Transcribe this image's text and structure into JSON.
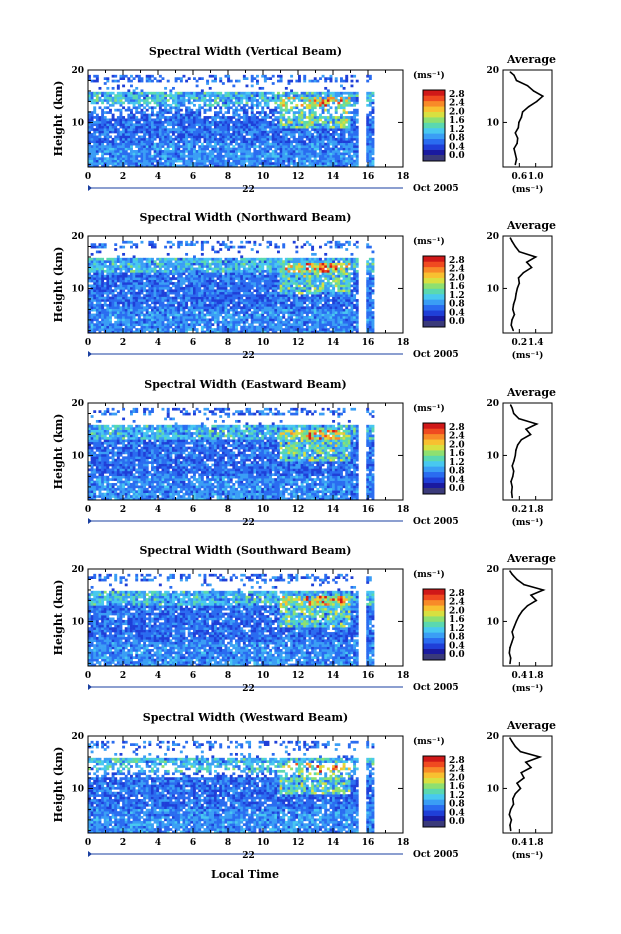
{
  "figure": {
    "date_label": "Oct 2005",
    "day_label": "22",
    "xlabel": "Local Time",
    "ylabel": "Height (km)",
    "unit_label": "(ms⁻¹)",
    "average_title": "Average",
    "colormap": [
      "#1a1aa0",
      "#1f3fd8",
      "#2a6cf0",
      "#3a9ef5",
      "#48c8f0",
      "#5ad8b0",
      "#8ee070",
      "#d8e040",
      "#f8c030",
      "#f88a28",
      "#f04a20",
      "#d01818"
    ],
    "below_color": "#3a3a7a"
  },
  "chart_data": [
    {
      "type": "heatmap",
      "title": "Spectral Width (Vertical Beam)",
      "xlabel": "Local Time",
      "ylabel": "Height (km)",
      "xlim": [
        0,
        18
      ],
      "ylim": [
        1.5,
        20
      ],
      "xticks": [
        "0",
        "2",
        "4",
        "6",
        "8",
        "10",
        "12",
        "14",
        "16",
        "18"
      ],
      "yticks": [
        "10",
        "20"
      ],
      "gaps_hours": [
        [
          15.5,
          15.9
        ],
        [
          16.4,
          18
        ]
      ],
      "colorbar": {
        "label": "(ms⁻¹)",
        "ticks": [
          "0.0",
          "0.4",
          "0.8",
          "1.2",
          "1.6",
          "2.0",
          "2.4",
          "2.8"
        ],
        "range": [
          0,
          3.0
        ]
      },
      "profile": {
        "title": "Average",
        "xlabel": "(ms⁻¹)",
        "xlim": [
          0.4,
          1.2
        ],
        "xticks": [
          "0.6",
          "1.0"
        ],
        "heights": [
          2,
          3,
          4,
          5,
          6,
          7,
          8,
          9,
          10,
          11,
          12,
          13,
          14,
          15,
          16,
          17,
          18,
          19,
          19.6
        ],
        "values": [
          0.6,
          0.62,
          0.6,
          0.58,
          0.63,
          0.64,
          0.6,
          0.65,
          0.66,
          0.7,
          0.72,
          0.82,
          0.95,
          1.05,
          0.9,
          0.8,
          0.62,
          0.58,
          0.52
        ]
      }
    },
    {
      "type": "heatmap",
      "title": "Spectral Width (Northward Beam)",
      "xlabel": "Local Time",
      "ylabel": "Height (km)",
      "xlim": [
        0,
        18
      ],
      "ylim": [
        1.5,
        20
      ],
      "xticks": [
        "0",
        "2",
        "4",
        "6",
        "8",
        "10",
        "12",
        "14",
        "16",
        "18"
      ],
      "yticks": [
        "10",
        "20"
      ],
      "gaps_hours": [
        [
          15.5,
          15.9
        ],
        [
          16.4,
          18
        ]
      ],
      "colorbar": {
        "label": "(ms⁻¹)",
        "ticks": [
          "0.0",
          "0.4",
          "0.8",
          "1.2",
          "1.6",
          "2.0",
          "2.4",
          "2.8"
        ],
        "range": [
          0,
          3.0
        ]
      },
      "profile": {
        "title": "Average",
        "xlabel": "(ms⁻¹)",
        "xlim": [
          0.2,
          1.4
        ],
        "xticks": [
          "0.2",
          "1.4"
        ],
        "heights": [
          2,
          3,
          4,
          5,
          6,
          7,
          8,
          9,
          10,
          11,
          12,
          13,
          14,
          15,
          16,
          17,
          18,
          19,
          19.6
        ],
        "values": [
          0.45,
          0.4,
          0.42,
          0.48,
          0.44,
          0.46,
          0.5,
          0.52,
          0.55,
          0.6,
          0.58,
          0.7,
          0.9,
          0.78,
          1.0,
          0.6,
          0.5,
          0.42,
          0.38
        ]
      }
    },
    {
      "type": "heatmap",
      "title": "Spectral Width (Eastward Beam)",
      "xlabel": "Local Time",
      "ylabel": "Height (km)",
      "xlim": [
        0,
        18
      ],
      "ylim": [
        1.5,
        20
      ],
      "xticks": [
        "0",
        "2",
        "4",
        "6",
        "8",
        "10",
        "12",
        "14",
        "16",
        "18"
      ],
      "yticks": [
        "10",
        "20"
      ],
      "gaps_hours": [
        [
          15.5,
          15.9
        ],
        [
          16.4,
          18
        ]
      ],
      "colorbar": {
        "label": "(ms⁻¹)",
        "ticks": [
          "0.0",
          "0.4",
          "0.8",
          "1.2",
          "1.6",
          "2.0",
          "2.4",
          "2.8"
        ],
        "range": [
          0,
          3.0
        ]
      },
      "profile": {
        "title": "Average",
        "xlabel": "(ms⁻¹)",
        "xlim": [
          0.2,
          1.8
        ],
        "xticks": [
          "0.2",
          "1.8"
        ],
        "heights": [
          2,
          3,
          4,
          5,
          6,
          7,
          8,
          9,
          10,
          11,
          12,
          13,
          14,
          15,
          16,
          17,
          18,
          19,
          19.6
        ],
        "values": [
          0.5,
          0.48,
          0.5,
          0.46,
          0.52,
          0.55,
          0.5,
          0.56,
          0.6,
          0.62,
          0.68,
          0.8,
          1.1,
          0.95,
          1.3,
          0.72,
          0.55,
          0.5,
          0.45
        ]
      }
    },
    {
      "type": "heatmap",
      "title": "Spectral Width (Southward Beam)",
      "xlabel": "Local Time",
      "ylabel": "Height (km)",
      "xlim": [
        0,
        18
      ],
      "ylim": [
        1.5,
        20
      ],
      "xticks": [
        "0",
        "2",
        "4",
        "6",
        "8",
        "10",
        "12",
        "14",
        "16",
        "18"
      ],
      "yticks": [
        "10",
        "20"
      ],
      "gaps_hours": [
        [
          15.5,
          15.9
        ],
        [
          16.4,
          18
        ]
      ],
      "colorbar": {
        "label": "(ms⁻¹)",
        "ticks": [
          "0.0",
          "0.4",
          "0.8",
          "1.2",
          "1.6",
          "2.0",
          "2.4",
          "2.8"
        ],
        "range": [
          0,
          3.0
        ]
      },
      "profile": {
        "title": "Average",
        "xlabel": "(ms⁻¹)",
        "xlim": [
          0.4,
          1.8
        ],
        "xticks": [
          "0.4",
          "1.8"
        ],
        "heights": [
          2,
          3,
          4,
          5,
          6,
          7,
          8,
          9,
          10,
          11,
          12,
          13,
          14,
          15,
          16,
          17,
          18,
          19,
          19.6
        ],
        "values": [
          0.6,
          0.62,
          0.58,
          0.6,
          0.65,
          0.7,
          0.66,
          0.72,
          0.78,
          0.85,
          0.95,
          1.1,
          1.35,
          1.2,
          1.55,
          1.0,
          0.8,
          0.66,
          0.6
        ]
      }
    },
    {
      "type": "heatmap",
      "title": "Spectral Width (Westward Beam)",
      "xlabel": "Local Time",
      "ylabel": "Height (km)",
      "xlim": [
        0,
        18
      ],
      "ylim": [
        1.5,
        20
      ],
      "xticks": [
        "0",
        "2",
        "4",
        "6",
        "8",
        "10",
        "12",
        "14",
        "16",
        "18"
      ],
      "yticks": [
        "10",
        "20"
      ],
      "gaps_hours": [
        [
          15.5,
          15.9
        ],
        [
          16.4,
          18
        ]
      ],
      "colorbar": {
        "label": "(ms⁻¹)",
        "ticks": [
          "0.0",
          "0.4",
          "0.8",
          "1.2",
          "1.6",
          "2.0",
          "2.4",
          "2.8"
        ],
        "range": [
          0,
          3.0
        ]
      },
      "profile": {
        "title": "Average",
        "xlabel": "(ms⁻¹)",
        "xlim": [
          0.4,
          1.8
        ],
        "xticks": [
          "0.4",
          "1.8"
        ],
        "heights": [
          2,
          3,
          4,
          5,
          6,
          7,
          8,
          9,
          10,
          11,
          12,
          13,
          14,
          15,
          16,
          17,
          18,
          19,
          19.6
        ],
        "values": [
          0.62,
          0.6,
          0.64,
          0.58,
          0.62,
          0.7,
          0.68,
          0.75,
          0.9,
          0.8,
          1.0,
          0.92,
          1.2,
          1.05,
          1.45,
          0.9,
          0.75,
          0.65,
          0.6
        ]
      }
    }
  ]
}
